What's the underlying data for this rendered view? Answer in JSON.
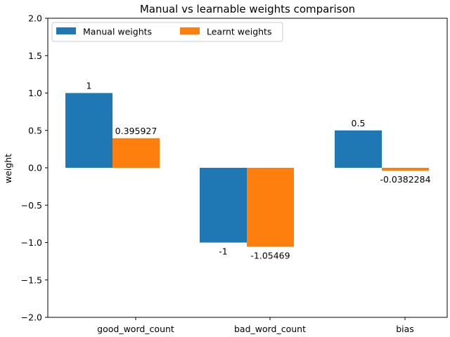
{
  "chart_data": {
    "type": "bar",
    "title": "Manual vs learnable weights comparison",
    "xlabel": "",
    "ylabel": "weight",
    "ylim": [
      -2.0,
      2.0
    ],
    "yticks": [
      "−2.0",
      "−1.5",
      "−1.0",
      "−0.5",
      "0.0",
      "0.5",
      "1.0",
      "1.5",
      "2.0"
    ],
    "ytick_values": [
      -2.0,
      -1.5,
      -1.0,
      -0.5,
      0.0,
      0.5,
      1.0,
      1.5,
      2.0
    ],
    "categories": [
      "good_word_count",
      "bad_word_count",
      "bias"
    ],
    "grid": false,
    "legend_position": "top-left",
    "series": [
      {
        "name": "Manual weights",
        "color": "#1f77b4",
        "values": [
          1,
          -1,
          0.5
        ],
        "labels": [
          "1",
          "-1",
          "0.5"
        ]
      },
      {
        "name": "Learnt weights",
        "color": "#ff7f0e",
        "values": [
          0.395927,
          -1.05469,
          -0.0382284
        ],
        "labels": [
          "0.395927",
          "-1.05469",
          "-0.0382284"
        ]
      }
    ]
  }
}
